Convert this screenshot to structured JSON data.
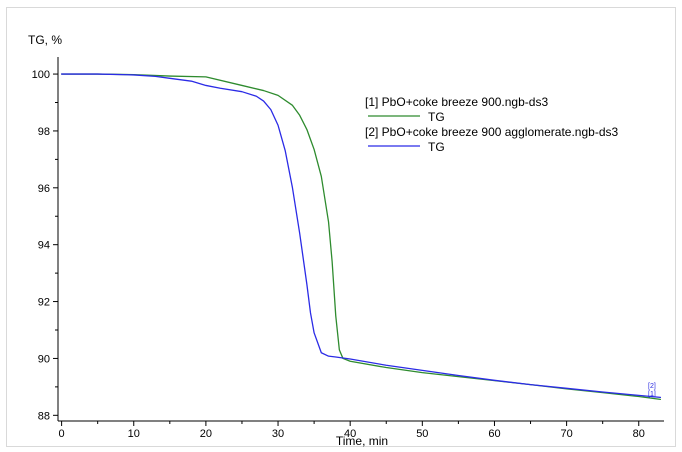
{
  "chart_data": {
    "type": "line",
    "ylabel": "TG, %",
    "xlabel": "Time, min",
    "xlim": [
      -0.5,
      83.5
    ],
    "ylim": [
      87.8,
      100.6
    ],
    "x_ticks": [
      0,
      10,
      20,
      30,
      40,
      50,
      60,
      70,
      80
    ],
    "y_ticks": [
      88,
      90,
      92,
      94,
      96,
      98,
      100
    ],
    "grid": false,
    "legend_position": "top-right",
    "series": [
      {
        "legend_title": "[1] PbO+coke breeze 900.ngb-ds3",
        "name": "TG",
        "marker_label": "[1]",
        "color": "#2e8b2e",
        "x": [
          0,
          5,
          10,
          15,
          20,
          25,
          28,
          30,
          32,
          33,
          34,
          34.5,
          35,
          36,
          37,
          37.5,
          38,
          38.5,
          39,
          40,
          45,
          50,
          55,
          60,
          65,
          70,
          75,
          80,
          83
        ],
        "y": [
          100,
          100,
          99.98,
          99.93,
          99.9,
          99.6,
          99.42,
          99.25,
          98.9,
          98.55,
          98.05,
          97.7,
          97.35,
          96.4,
          94.8,
          93.4,
          91.5,
          90.3,
          90.0,
          89.9,
          89.68,
          89.5,
          89.36,
          89.22,
          89.08,
          88.93,
          88.8,
          88.66,
          88.56
        ]
      },
      {
        "legend_title": "[2] PbO+coke breeze 900 agglomerate.ngb-ds3",
        "name": "TG",
        "marker_label": "[2]",
        "color": "#2b2be6",
        "x": [
          0,
          5,
          10,
          13,
          15,
          18,
          20,
          22,
          25,
          27,
          28,
          29,
          30,
          31,
          32,
          33,
          34,
          34.5,
          35,
          36,
          37,
          38,
          40,
          45,
          50,
          55,
          60,
          65,
          70,
          75,
          80,
          83
        ],
        "y": [
          100,
          100,
          99.97,
          99.92,
          99.85,
          99.75,
          99.6,
          99.5,
          99.38,
          99.22,
          99.05,
          98.75,
          98.2,
          97.3,
          96.0,
          94.4,
          92.6,
          91.6,
          90.9,
          90.2,
          90.08,
          90.05,
          89.98,
          89.76,
          89.58,
          89.4,
          89.23,
          89.08,
          88.95,
          88.82,
          88.7,
          88.63
        ]
      }
    ]
  }
}
